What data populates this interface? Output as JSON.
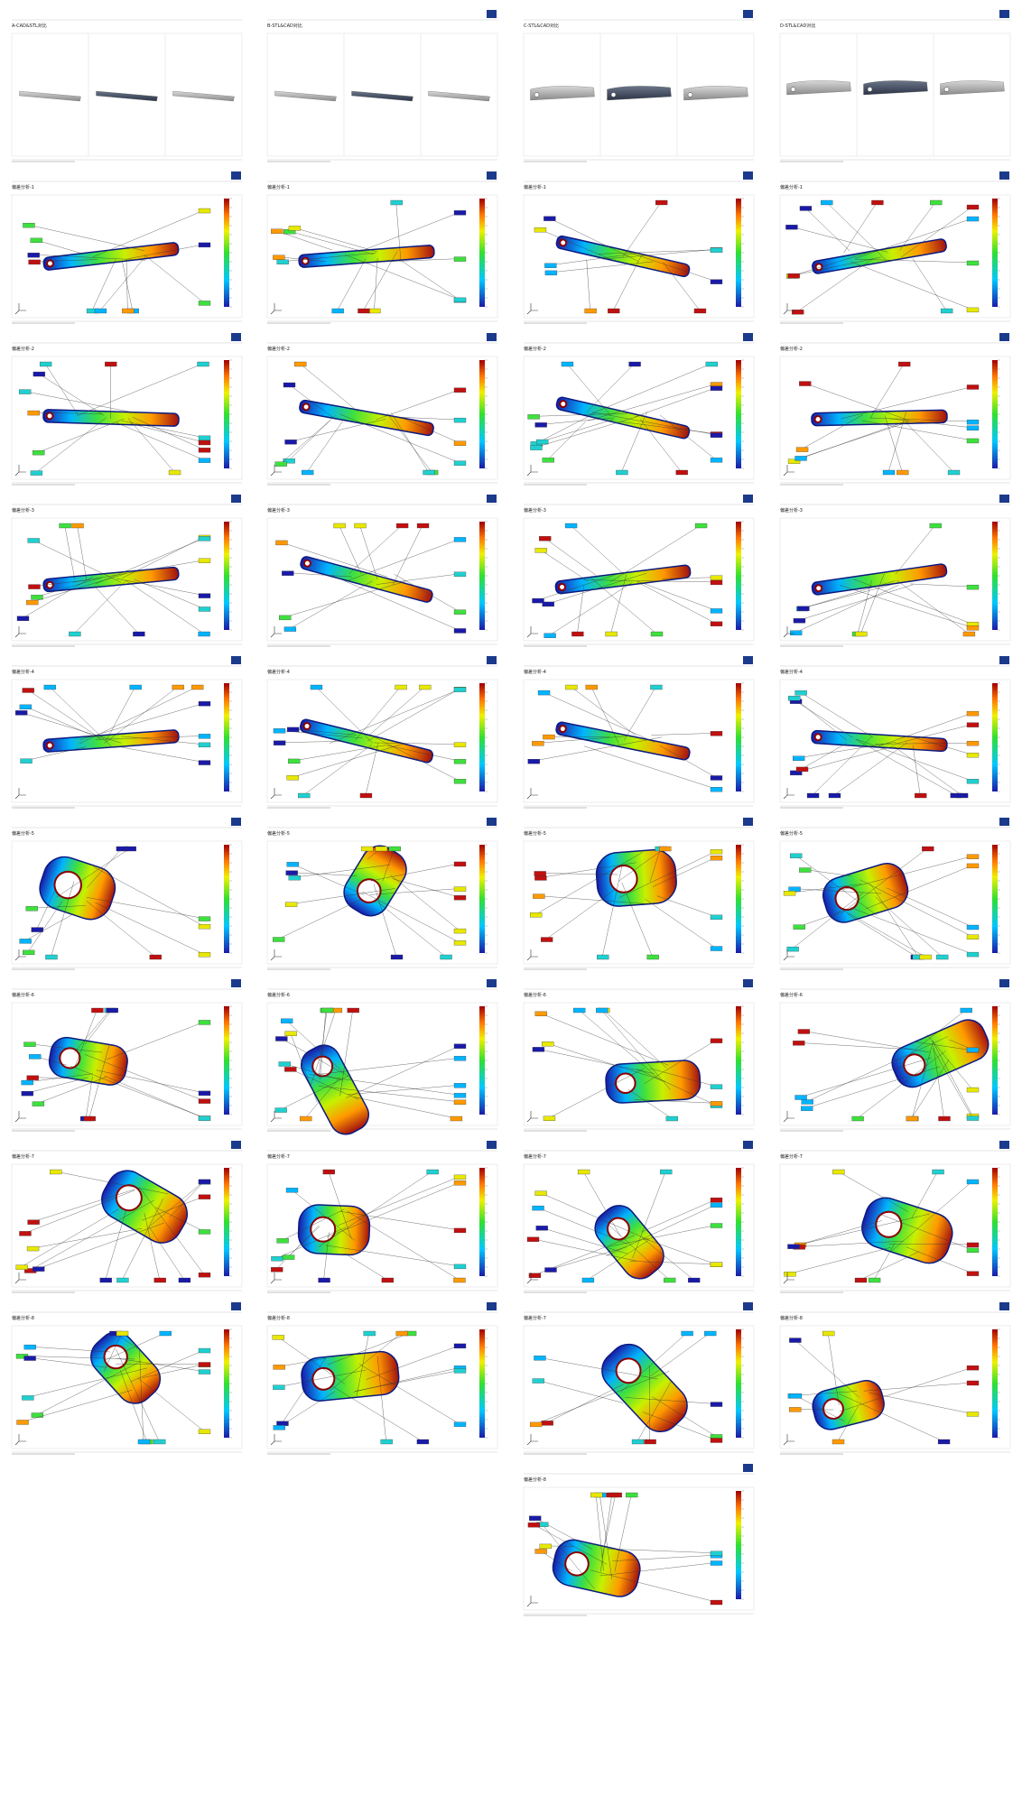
{
  "pages": [
    {
      "title": "A-CAD&STL对比"
    },
    {
      "title": "B-STL&CAD对比"
    },
    {
      "title": "C-STL&CAD对比"
    },
    {
      "title": "D-STL&CAD对比"
    },
    {
      "title": "偏差分析-1"
    },
    {
      "title": "偏差分析-1"
    },
    {
      "title": "偏差分析-1"
    },
    {
      "title": "偏差分析-1"
    },
    {
      "title": "偏差分析-2"
    },
    {
      "title": "偏差分析-2"
    },
    {
      "title": "偏差分析-2"
    },
    {
      "title": "偏差分析-2"
    },
    {
      "title": "偏差分析-3"
    },
    {
      "title": "偏差分析-3"
    },
    {
      "title": "偏差分析-3"
    },
    {
      "title": "偏差分析-3"
    },
    {
      "title": "偏差分析-4"
    },
    {
      "title": "偏差分析-4"
    },
    {
      "title": "偏差分析-4"
    },
    {
      "title": "偏差分析-4"
    },
    {
      "title": "偏差分析-5"
    },
    {
      "title": "偏差分析-5"
    },
    {
      "title": "偏差分析-5"
    },
    {
      "title": "偏差分析-5"
    },
    {
      "title": "偏差分析-6"
    },
    {
      "title": "偏差分析-6"
    },
    {
      "title": "偏差分析-6"
    },
    {
      "title": "偏差分析-6"
    },
    {
      "title": "偏差分析-7"
    },
    {
      "title": "偏差分析-7"
    },
    {
      "title": "偏差分析-7"
    },
    {
      "title": "偏差分析-7"
    },
    {
      "title": "偏差分析-8"
    },
    {
      "title": "偏差分析-8"
    },
    {
      "title": "偏差分析-7"
    },
    {
      "title": "偏差分析-8"
    },
    {
      "title": "偏差分析-8"
    }
  ]
}
